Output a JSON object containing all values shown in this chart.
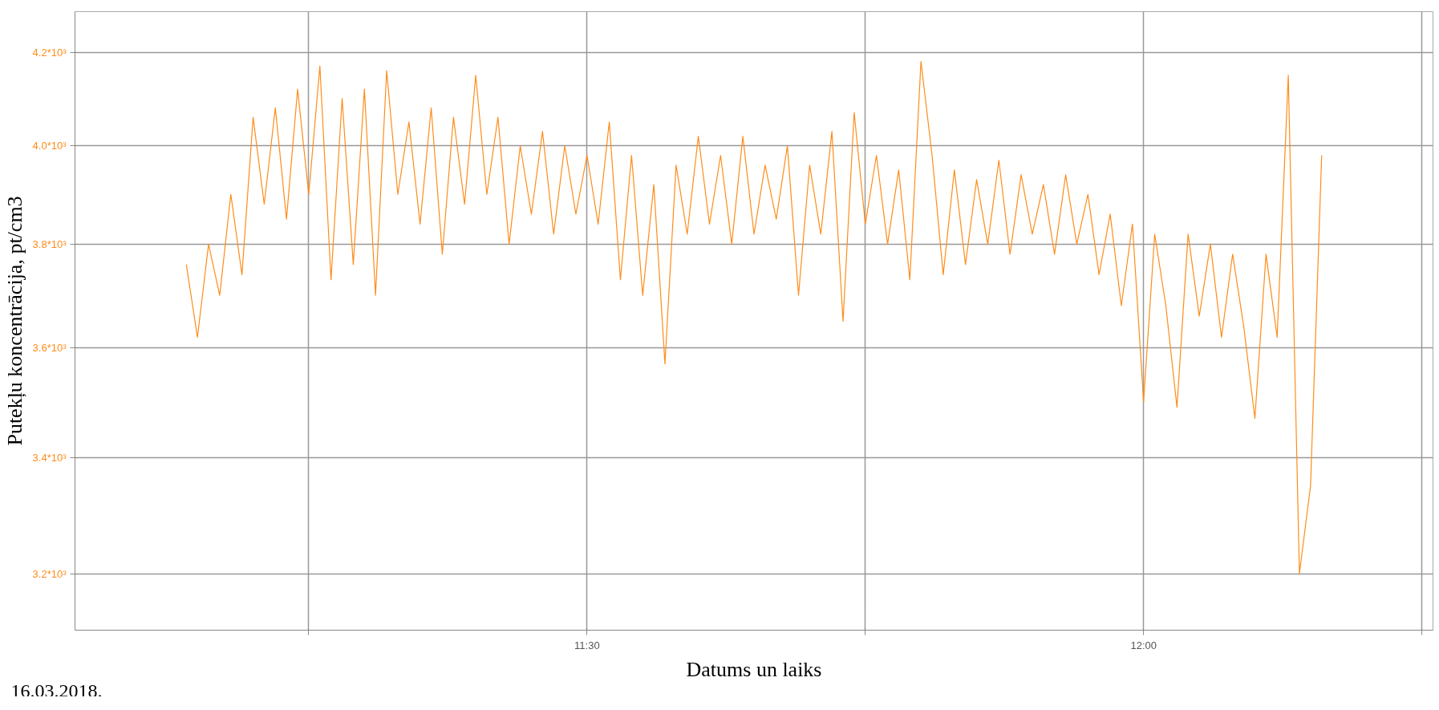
{
  "chart_data": {
    "type": "line",
    "xlabel": "Datums un laiks",
    "ylabel": "Putekļu koncentrācija, pt/cm3",
    "annotations": [
      "16.03.2018."
    ],
    "log": "y",
    "grid": true,
    "marker": "none",
    "line_style": "solid",
    "xlim": [
      11.04,
      12.26
    ],
    "xticks": [
      {
        "value": 11.25,
        "label": null
      },
      {
        "value": 11.5,
        "label": "11:30"
      },
      {
        "value": 11.75,
        "label": null
      },
      {
        "value": 12.0,
        "label": "12:00"
      },
      {
        "value": 12.25,
        "label": null
      }
    ],
    "ylim": [
      3107,
      4290
    ],
    "yticks": [
      {
        "value": 3200,
        "label": "3.2*10³"
      },
      {
        "value": 3400,
        "label": "3.4*10³"
      },
      {
        "value": 3600,
        "label": "3.6*10³"
      },
      {
        "value": 3800,
        "label": "3.8*10³"
      },
      {
        "value": 4000,
        "label": "4.0*10³"
      },
      {
        "value": 4200,
        "label": "4.2*10³"
      }
    ],
    "x": [
      11.14,
      11.15,
      11.16,
      11.17,
      11.18,
      11.19,
      11.2,
      11.21,
      11.22,
      11.23,
      11.24,
      11.25,
      11.26,
      11.27,
      11.28,
      11.29,
      11.3,
      11.31,
      11.32,
      11.33,
      11.34,
      11.35,
      11.36,
      11.37,
      11.38,
      11.39,
      11.4,
      11.41,
      11.42,
      11.43,
      11.44,
      11.45,
      11.46,
      11.47,
      11.48,
      11.49,
      11.5,
      11.51,
      11.52,
      11.53,
      11.54,
      11.55,
      11.56,
      11.57,
      11.58,
      11.59,
      11.6,
      11.61,
      11.62,
      11.63,
      11.64,
      11.65,
      11.66,
      11.67,
      11.68,
      11.69,
      11.7,
      11.71,
      11.72,
      11.73,
      11.74,
      11.75,
      11.76,
      11.77,
      11.78,
      11.79,
      11.8,
      11.81,
      11.82,
      11.83,
      11.84,
      11.85,
      11.86,
      11.87,
      11.88,
      11.89,
      11.9,
      11.91,
      11.92,
      11.93,
      11.94,
      11.95,
      11.96,
      11.97,
      11.98,
      11.99,
      12.0,
      12.01,
      12.02,
      12.03,
      12.04,
      12.05,
      12.06,
      12.07,
      12.08,
      12.09,
      12.1,
      12.11,
      12.12,
      12.13,
      12.14,
      12.15,
      12.16
    ],
    "series": [
      {
        "color": "#ff8c1a",
        "values": [
          3760,
          3620,
          3800,
          3700,
          3900,
          3740,
          4060,
          3880,
          4080,
          3850,
          4120,
          3900,
          4170,
          3730,
          4100,
          3760,
          4120,
          3700,
          4160,
          3900,
          4050,
          3840,
          4080,
          3780,
          4060,
          3880,
          4150,
          3900,
          4060,
          3800,
          4000,
          3860,
          4030,
          3820,
          4000,
          3860,
          3980,
          3840,
          4050,
          3730,
          3980,
          3700,
          3920,
          3570,
          3960,
          3820,
          4020,
          3840,
          3980,
          3800,
          4020,
          3820,
          3960,
          3850,
          4000,
          3700,
          3960,
          3820,
          4030,
          3650,
          4070,
          3840,
          3980,
          3800,
          3950,
          3730,
          4180,
          3980,
          3740,
          3950,
          3760,
          3930,
          3800,
          3970,
          3780,
          3940,
          3820,
          3920,
          3780,
          3940,
          3800,
          3900,
          3740,
          3860,
          3680,
          3840,
          3500,
          3820,
          3680,
          3490,
          3820,
          3660,
          3800,
          3620,
          3780,
          3640,
          3470,
          3780,
          3620,
          4150,
          3200,
          3350,
          3980
        ]
      }
    ]
  }
}
